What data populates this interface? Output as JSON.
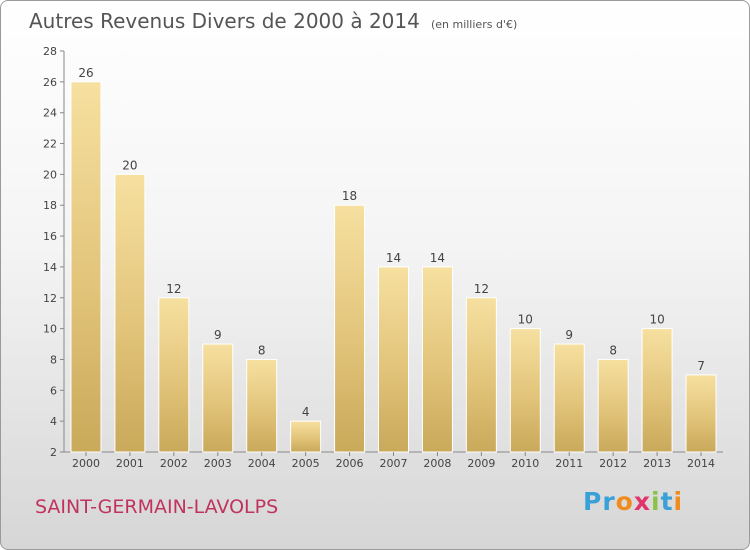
{
  "header": {
    "title": "Autres Revenus Divers de 2000 à 2014",
    "subtitle": "(en milliers d'€)"
  },
  "footer": {
    "city": "SAINT-GERMAIN-LAVOLPS",
    "brand_letters": [
      "P",
      "r",
      "o",
      "x",
      "i",
      "t",
      "i"
    ],
    "brand_colors": [
      "#3aa0d8",
      "#3aa0d8",
      "#f08c1e",
      "#e2336b",
      "#8bc34a",
      "#3aa0d8",
      "#f08c1e"
    ]
  },
  "chart_data": {
    "type": "bar",
    "title": "Autres Revenus Divers de 2000 à 2014",
    "subtitle": "(en milliers d'€)",
    "categories": [
      "2000",
      "2001",
      "2002",
      "2003",
      "2004",
      "2005",
      "2006",
      "2007",
      "2008",
      "2009",
      "2010",
      "2011",
      "2012",
      "2013",
      "2014"
    ],
    "values": [
      26,
      20,
      12,
      9,
      8,
      4,
      18,
      14,
      14,
      12,
      10,
      9,
      8,
      10,
      7
    ],
    "ylim": [
      2,
      28
    ],
    "yticks": [
      2,
      4,
      6,
      8,
      10,
      12,
      14,
      16,
      18,
      20,
      22,
      24,
      26,
      28
    ],
    "grid": false,
    "data_labels": true,
    "bar_color": "#e9cf85"
  }
}
